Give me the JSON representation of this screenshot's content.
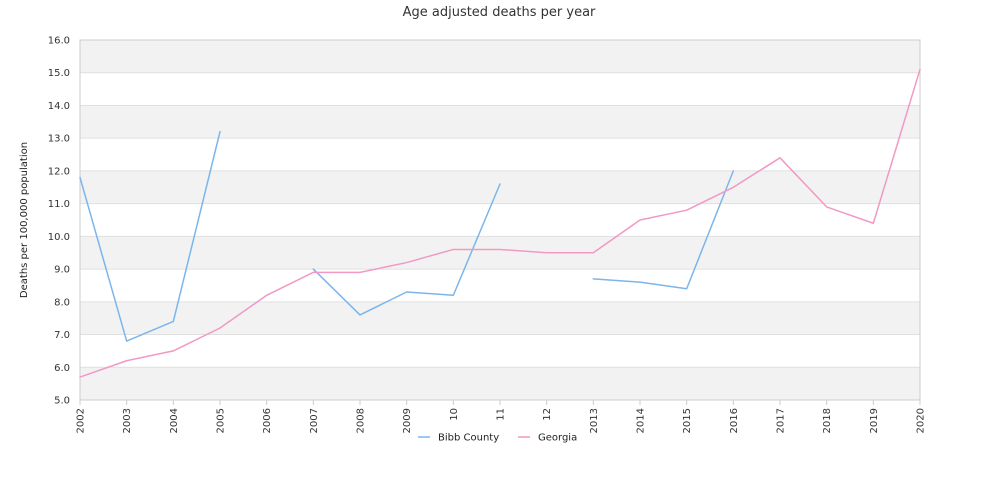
{
  "chart_data": {
    "type": "line",
    "title": "Age adjusted deaths per year",
    "xlabel": "",
    "ylabel": "Deaths per 100,000 population",
    "ylim": [
      5.0,
      16.0
    ],
    "y_ticks": [
      "5.0",
      "6.0",
      "7.0",
      "8.0",
      "9.0",
      "10.0",
      "11.0",
      "12.0",
      "13.0",
      "14.0",
      "15.0",
      "16.0"
    ],
    "categories": [
      "2002",
      "2003",
      "2004",
      "2005",
      "2006",
      "2007",
      "2008",
      "2009",
      "10",
      "11",
      "12",
      "2013",
      "2014",
      "2015",
      "2016",
      "2017",
      "2018",
      "2019",
      "2020"
    ],
    "grid": "horizontal alternating bands",
    "legend_position": "bottom-center",
    "series": [
      {
        "name": "Bibb County",
        "color": "#7cb5ec",
        "values": [
          11.8,
          6.8,
          7.4,
          13.2,
          null,
          9.0,
          7.6,
          8.3,
          8.2,
          11.6,
          null,
          8.7,
          8.6,
          8.4,
          12.0,
          null,
          null,
          null,
          null
        ]
      },
      {
        "name": "Georgia",
        "color": "#f199c4",
        "values": [
          5.7,
          6.2,
          6.5,
          7.2,
          8.2,
          8.9,
          8.9,
          9.2,
          9.6,
          9.6,
          9.5,
          9.5,
          10.5,
          10.8,
          11.5,
          12.4,
          10.9,
          10.4,
          15.1
        ]
      }
    ]
  }
}
